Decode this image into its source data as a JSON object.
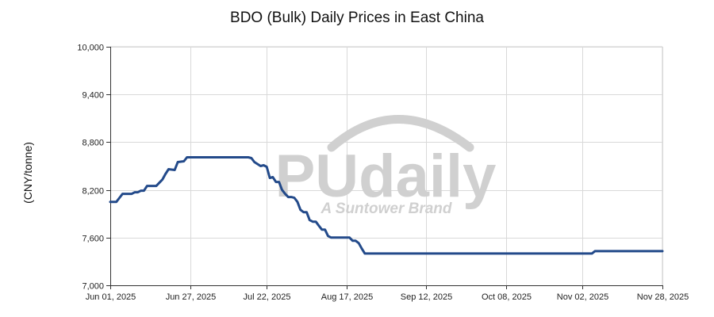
{
  "chart_data": {
    "type": "line",
    "title": "BDO (Bulk) Daily Prices in East China",
    "xlabel": "",
    "ylabel": "(CNY/tonne)",
    "ylim": [
      7000,
      10000
    ],
    "xlim": [
      "2025-06-01",
      "2025-11-28"
    ],
    "y_ticks": [
      7000,
      7600,
      8200,
      8800,
      9400,
      10000
    ],
    "y_tick_labels": [
      "7,000",
      "7,600",
      "8,200",
      "8,800",
      "9,400",
      "10,000"
    ],
    "x_ticks": [
      "2025-06-01",
      "2025-06-27",
      "2025-07-22",
      "2025-08-17",
      "2025-09-12",
      "2025-10-08",
      "2025-11-02",
      "2025-11-28"
    ],
    "x_tick_labels": [
      "Jun 01, 2025",
      "Jun 27, 2025",
      "Jul 22, 2025",
      "Aug 17, 2025",
      "Sep 12, 2025",
      "Oct 08, 2025",
      "Nov 02, 2025",
      "Nov 28, 2025"
    ],
    "grid": true,
    "line_color": "#234a8a",
    "watermark": {
      "logo": "PUdaily",
      "tagline": "A Suntower Brand",
      "color": "#d0d0d0"
    },
    "series": [
      {
        "name": "",
        "x": [
          "2025-06-01",
          "2025-06-03",
          "2025-06-04",
          "2025-06-05",
          "2025-06-08",
          "2025-06-09",
          "2025-06-10",
          "2025-06-11",
          "2025-06-12",
          "2025-06-13",
          "2025-06-14",
          "2025-06-16",
          "2025-06-18",
          "2025-06-19",
          "2025-06-20",
          "2025-06-22",
          "2025-06-23",
          "2025-06-25",
          "2025-06-26",
          "2025-06-27",
          "2025-07-16",
          "2025-07-17",
          "2025-07-18",
          "2025-07-20",
          "2025-07-21",
          "2025-07-22",
          "2025-07-23",
          "2025-07-24",
          "2025-07-25",
          "2025-07-26",
          "2025-07-27",
          "2025-07-28",
          "2025-07-29",
          "2025-07-30",
          "2025-07-31",
          "2025-08-01",
          "2025-08-02",
          "2025-08-03",
          "2025-08-04",
          "2025-08-05",
          "2025-08-06",
          "2025-08-07",
          "2025-08-08",
          "2025-08-09",
          "2025-08-10",
          "2025-08-11",
          "2025-08-12",
          "2025-08-13",
          "2025-08-14",
          "2025-08-15",
          "2025-08-16",
          "2025-08-17",
          "2025-08-18",
          "2025-08-19",
          "2025-08-20",
          "2025-08-21",
          "2025-08-22",
          "2025-08-23",
          "2025-08-24",
          "2025-08-25",
          "2025-08-26",
          "2025-11-05",
          "2025-11-06",
          "2025-11-28"
        ],
        "values": [
          8050,
          8050,
          8100,
          8150,
          8150,
          8170,
          8170,
          8190,
          8190,
          8250,
          8250,
          8250,
          8330,
          8400,
          8460,
          8450,
          8550,
          8560,
          8610,
          8610,
          8610,
          8600,
          8550,
          8500,
          8510,
          8490,
          8350,
          8360,
          8300,
          8300,
          8200,
          8150,
          8110,
          8110,
          8100,
          8050,
          7950,
          7920,
          7920,
          7820,
          7800,
          7800,
          7750,
          7700,
          7700,
          7620,
          7600,
          7600,
          7600,
          7600,
          7600,
          7600,
          7600,
          7560,
          7560,
          7530,
          7460,
          7400,
          7400,
          7400,
          7400,
          7400,
          7430,
          7430
        ]
      }
    ]
  }
}
